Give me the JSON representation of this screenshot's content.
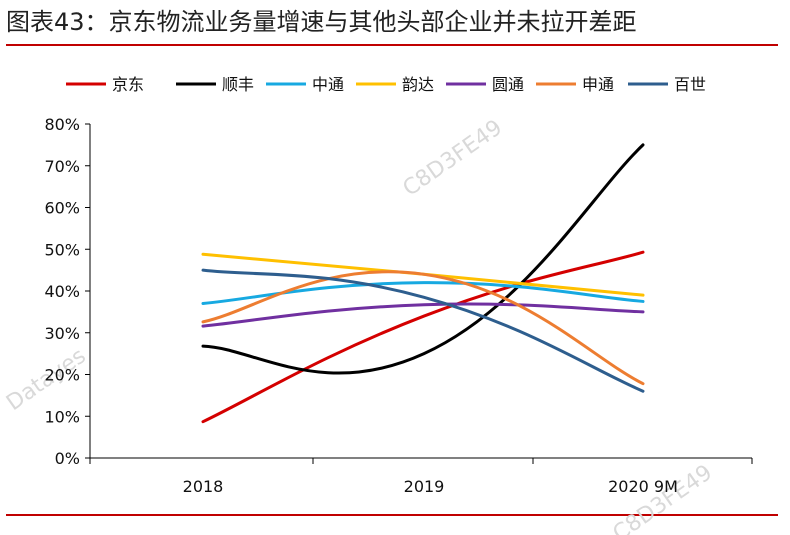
{
  "title": "图表43：京东物流业务量增速与其他头部企业并未拉开差距",
  "watermark": "Datayes",
  "watermark_code": "C8D3FE49",
  "chart_data": {
    "type": "line",
    "categories": [
      "2018",
      "2019",
      "2020 9M"
    ],
    "ylim": [
      0,
      80
    ],
    "yticks": [
      "0%",
      "10%",
      "20%",
      "30%",
      "40%",
      "50%",
      "60%",
      "70%",
      "80%"
    ],
    "legend_position": "top",
    "grid": false,
    "series": [
      {
        "name": "京东",
        "color": "#d40000",
        "values": [
          8.7,
          34,
          49.3
        ]
      },
      {
        "name": "顺丰",
        "color": "#000000",
        "values": [
          26.8,
          25,
          75
        ]
      },
      {
        "name": "中通",
        "color": "#17a9e1",
        "values": [
          37,
          42,
          37.5
        ]
      },
      {
        "name": "韵达",
        "color": "#ffc000",
        "values": [
          48.8,
          44,
          39
        ]
      },
      {
        "name": "圆通",
        "color": "#7030a0",
        "values": [
          31.6,
          36.7,
          35
        ]
      },
      {
        "name": "申通",
        "color": "#ed7d31",
        "values": [
          32.6,
          44,
          17.8
        ]
      },
      {
        "name": "百世",
        "color": "#2e5e8e",
        "values": [
          45,
          38.5,
          16
        ]
      }
    ]
  }
}
